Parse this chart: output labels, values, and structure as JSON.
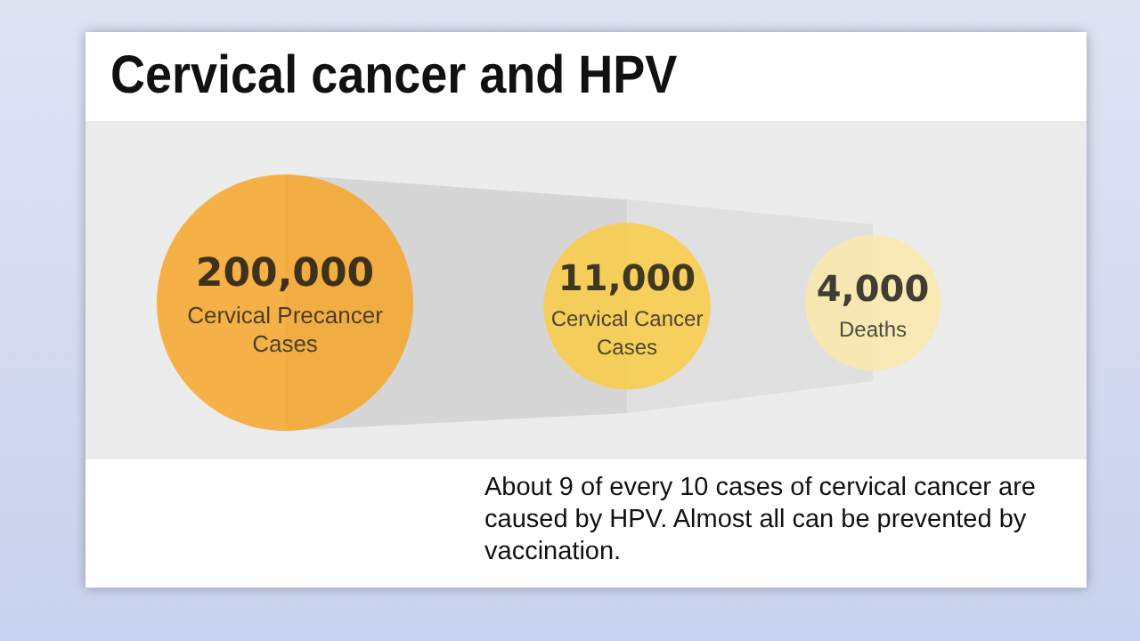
{
  "chart_data": {
    "type": "other",
    "title": "Cervical cancer and HPV",
    "categories": [
      "Cervical Precancer Cases",
      "Cervical Cancer Cases",
      "Deaths"
    ],
    "values": [
      200000,
      11000,
      4000
    ],
    "colors": [
      "#f7a21b",
      "#fcca3c",
      "#fdeaa8"
    ],
    "value_labels": [
      "200,000",
      "11,000",
      "4,000"
    ],
    "annotations": [
      "About 9 of every 10 cases of cervical cancer are caused by HPV. Almost all can be prevented by vaccination."
    ]
  }
}
